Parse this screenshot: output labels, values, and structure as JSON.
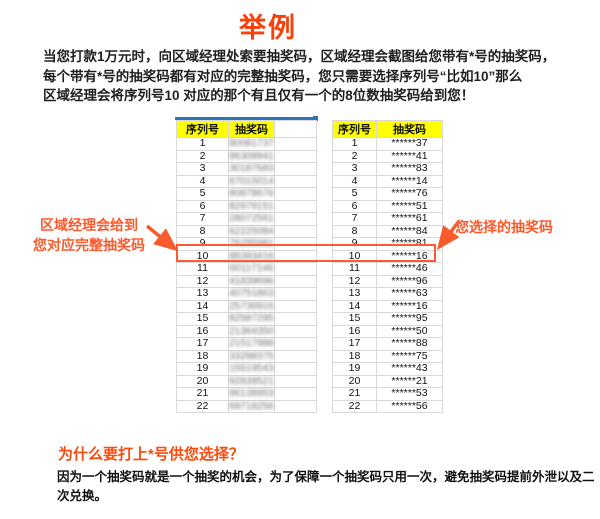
{
  "title": "举例",
  "intro": "当您打款1万元时，向区域经理处索要抽奖码，区域经理会截图给您带有*号的抽奖码，\n每个带有*号的抽奖码都有对应的完整抽奖码，您只需要选择序列号“比如10”那么\n区域经理会将序列号10 对应的那个有且仅有一个的8位数抽奖码给到您！",
  "colors": {
    "accent_title": "#fb3f06",
    "annotation_orange": "#fb5a2d",
    "highlight_box": "#fb5a35",
    "table_header_bg": "#ffff00",
    "table_grid": "#d9d9d9",
    "excel_selection_blue": "#2e75b6",
    "body_text": "#1f1f1f"
  },
  "left_table": {
    "header": [
      "序列号",
      "抽奖码"
    ],
    "codes_blurred": true,
    "highlight_serial": "10",
    "rows": [
      [
        "1",
        "80081737"
      ],
      [
        "2",
        "86308941"
      ],
      [
        "3",
        "30187683"
      ],
      [
        "4",
        "67015014"
      ],
      [
        "5",
        "80878676"
      ],
      [
        "6",
        "82978151"
      ],
      [
        "7",
        "28072561"
      ],
      [
        "8",
        "62225084"
      ],
      [
        "9",
        "76295981"
      ],
      [
        "10",
        "88393416"
      ],
      [
        "11",
        "60117146"
      ],
      [
        "12",
        "41839696"
      ],
      [
        "13",
        "40751863"
      ],
      [
        "14",
        "25736916"
      ],
      [
        "15",
        "82587295"
      ],
      [
        "16",
        "21364350"
      ],
      [
        "17",
        "21517988"
      ],
      [
        "18",
        "33298375"
      ],
      [
        "19",
        "15519543"
      ],
      [
        "20",
        "92839521"
      ],
      [
        "21",
        "96138953"
      ],
      [
        "22",
        "69718256"
      ]
    ]
  },
  "right_table": {
    "header": [
      "序列号",
      "抽奖码"
    ],
    "codes_blurred": false,
    "highlight_serial": "10",
    "rows": [
      [
        "1",
        "******37"
      ],
      [
        "2",
        "******41"
      ],
      [
        "3",
        "******83"
      ],
      [
        "4",
        "******14"
      ],
      [
        "5",
        "******76"
      ],
      [
        "6",
        "******51"
      ],
      [
        "7",
        "******61"
      ],
      [
        "8",
        "******84"
      ],
      [
        "9",
        "******81"
      ],
      [
        "10",
        "******16"
      ],
      [
        "11",
        "******46"
      ],
      [
        "12",
        "******96"
      ],
      [
        "13",
        "******63"
      ],
      [
        "14",
        "******16"
      ],
      [
        "15",
        "******95"
      ],
      [
        "16",
        "******50"
      ],
      [
        "17",
        "******88"
      ],
      [
        "18",
        "******75"
      ],
      [
        "19",
        "******43"
      ],
      [
        "20",
        "******21"
      ],
      [
        "21",
        "******53"
      ],
      [
        "22",
        "******56"
      ]
    ]
  },
  "annotations": {
    "left": "区域经理会给到\n您对应完整抽奖码",
    "right": "您选择的抽奖码"
  },
  "footer": {
    "heading": "为什么要打上*号供您选择？",
    "text": "因为一个抽奖码就是一个抽奖的机会，为了保障一个抽奖码只用一次，避免抽奖码提前外泄以及二次兑换。"
  }
}
